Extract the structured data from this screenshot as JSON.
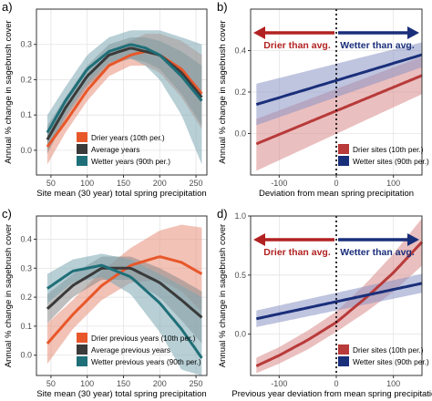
{
  "chart_data": [
    {
      "panel": "a)",
      "type": "line",
      "xlabel": "Site mean (30 year) total spring precipitation",
      "ylabel": "Annual % change in sagebrush cover",
      "xlim": [
        30,
        265
      ],
      "ylim": [
        -0.07,
        0.4
      ],
      "xticks": [
        50,
        100,
        150,
        200,
        250
      ],
      "yticks": [
        0.0,
        0.1,
        0.2,
        0.3
      ],
      "grid": true,
      "legend_position": "bottom-center",
      "series": [
        {
          "name": "Drier years (10th per.)",
          "color": "#e8572a",
          "band_color": "#e8907a",
          "x": [
            45,
            70,
            100,
            130,
            160,
            180,
            200,
            230,
            258
          ],
          "y": [
            0.01,
            0.08,
            0.17,
            0.24,
            0.27,
            0.28,
            0.27,
            0.23,
            0.16
          ],
          "lower": [
            -0.04,
            0.05,
            0.14,
            0.21,
            0.24,
            0.24,
            0.22,
            0.15,
            0.06
          ],
          "upper": [
            0.06,
            0.11,
            0.2,
            0.28,
            0.31,
            0.33,
            0.33,
            0.31,
            0.27
          ]
        },
        {
          "name": "Average years",
          "color": "#3a3a3a",
          "band_color": "#8a8a8a",
          "x": [
            45,
            70,
            100,
            130,
            160,
            180,
            200,
            230,
            258
          ],
          "y": [
            0.03,
            0.12,
            0.21,
            0.27,
            0.29,
            0.28,
            0.27,
            0.22,
            0.15
          ],
          "lower": [
            -0.01,
            0.09,
            0.18,
            0.24,
            0.26,
            0.25,
            0.23,
            0.16,
            0.07
          ],
          "upper": [
            0.07,
            0.15,
            0.24,
            0.3,
            0.32,
            0.32,
            0.31,
            0.28,
            0.24
          ]
        },
        {
          "name": "Wetter years (90th per.)",
          "color": "#1f6f78",
          "band_color": "#7ba7b3",
          "x": [
            45,
            70,
            100,
            130,
            160,
            180,
            200,
            230,
            258
          ],
          "y": [
            0.05,
            0.14,
            0.23,
            0.28,
            0.3,
            0.29,
            0.27,
            0.21,
            0.14
          ],
          "lower": [
            0.0,
            0.1,
            0.19,
            0.25,
            0.26,
            0.24,
            0.2,
            0.1,
            -0.04
          ],
          "upper": [
            0.1,
            0.18,
            0.27,
            0.32,
            0.34,
            0.34,
            0.34,
            0.32,
            0.3
          ]
        }
      ]
    },
    {
      "panel": "b)",
      "type": "line",
      "xlabel": "Deviation from mean spring precipitation",
      "ylabel": "Annual % change in sagebrush cover",
      "xlim": [
        -150,
        150
      ],
      "ylim": [
        -0.2,
        0.6
      ],
      "xticks": [
        -100,
        0,
        100
      ],
      "yticks": [
        0.0,
        0.2,
        0.4
      ],
      "grid": true,
      "legend_position": "bottom-right",
      "vline_x": 0,
      "arrows": {
        "left_label": "Drier than avg.",
        "right_label": "Wetter than avg.",
        "left_color": "#b22222",
        "right_color": "#1a2f7a",
        "y": 0.55
      },
      "series": [
        {
          "name": "Drier sites (10th per.)",
          "color": "#b83a3a",
          "band_color": "#d98a8a",
          "x": [
            -140,
            150
          ],
          "y": [
            -0.05,
            0.28
          ],
          "lower": [
            -0.18,
            0.19
          ],
          "upper": [
            0.07,
            0.37
          ]
        },
        {
          "name": "Wetter sites (90th per.)",
          "color": "#1a2f7a",
          "band_color": "#8a93c4",
          "x": [
            -140,
            150
          ],
          "y": [
            0.14,
            0.38
          ],
          "lower": [
            0.04,
            0.32
          ],
          "upper": [
            0.24,
            0.44
          ]
        }
      ]
    },
    {
      "panel": "c)",
      "type": "line",
      "xlabel": "Site mean (30 year) total spring precipitation",
      "ylabel": "Annual % change in sagebrush cover",
      "xlim": [
        30,
        265
      ],
      "ylim": [
        -0.07,
        0.48
      ],
      "xticks": [
        50,
        100,
        150,
        200,
        250
      ],
      "yticks": [
        0.0,
        0.1,
        0.2,
        0.3,
        0.4
      ],
      "grid": true,
      "legend_position": "bottom-center",
      "series": [
        {
          "name": "Drier previous years (10th per.)",
          "color": "#e8572a",
          "band_color": "#e8907a",
          "x": [
            45,
            80,
            120,
            160,
            200,
            230,
            258
          ],
          "y": [
            0.04,
            0.14,
            0.24,
            0.31,
            0.34,
            0.32,
            0.28
          ],
          "lower": [
            -0.03,
            0.09,
            0.19,
            0.25,
            0.26,
            0.22,
            0.15
          ],
          "upper": [
            0.11,
            0.19,
            0.29,
            0.37,
            0.43,
            0.45,
            0.44
          ]
        },
        {
          "name": "Average previous years",
          "color": "#3a3a3a",
          "band_color": "#8a8a8a",
          "x": [
            45,
            80,
            120,
            160,
            200,
            230,
            258
          ],
          "y": [
            0.16,
            0.24,
            0.3,
            0.3,
            0.25,
            0.19,
            0.13
          ],
          "lower": [
            0.11,
            0.2,
            0.26,
            0.26,
            0.2,
            0.12,
            0.04
          ],
          "upper": [
            0.21,
            0.28,
            0.34,
            0.34,
            0.3,
            0.26,
            0.22
          ]
        },
        {
          "name": "Wetter previous years (90th per.)",
          "color": "#1f6f78",
          "band_color": "#7ba7b3",
          "x": [
            45,
            80,
            120,
            160,
            200,
            230,
            258
          ],
          "y": [
            0.23,
            0.29,
            0.31,
            0.27,
            0.18,
            0.09,
            -0.01
          ],
          "lower": [
            0.18,
            0.25,
            0.27,
            0.21,
            0.08,
            -0.05,
            -0.07
          ],
          "upper": [
            0.28,
            0.33,
            0.35,
            0.33,
            0.28,
            0.24,
            0.2
          ]
        }
      ]
    },
    {
      "panel": "d)",
      "type": "line",
      "xlabel": "Previous year deviation from mean spring precipitation",
      "ylabel": "Annual % change in sagebrush cover",
      "xlim": [
        -150,
        150
      ],
      "ylim": [
        -0.35,
        1.0
      ],
      "xticks": [
        -100,
        0,
        100
      ],
      "yticks": [
        0.0,
        0.5,
        1.0
      ],
      "grid": true,
      "legend_position": "bottom-right",
      "vline_x": 0,
      "arrows": {
        "left_label": "Drier than avg.",
        "right_label": "Wetter than avg.",
        "left_color": "#b22222",
        "right_color": "#1a2f7a",
        "y": 0.9
      },
      "series": [
        {
          "name": "Drier sites (10th per.)",
          "color": "#b83a3a",
          "band_color": "#d98a8a",
          "x": [
            -140,
            -100,
            -50,
            0,
            50,
            100,
            150
          ],
          "y": [
            -0.27,
            -0.18,
            -0.05,
            0.1,
            0.3,
            0.52,
            0.78
          ],
          "lower": [
            -0.33,
            -0.25,
            -0.13,
            0.02,
            0.18,
            0.36,
            0.58
          ],
          "upper": [
            -0.2,
            -0.11,
            0.03,
            0.19,
            0.42,
            0.68,
            0.98
          ]
        },
        {
          "name": "Wetter sites (90th per.)",
          "color": "#1a2f7a",
          "band_color": "#8a93c4",
          "x": [
            -140,
            150
          ],
          "y": [
            0.13,
            0.43
          ],
          "lower": [
            0.06,
            0.35
          ],
          "upper": [
            0.2,
            0.51
          ]
        }
      ]
    }
  ]
}
